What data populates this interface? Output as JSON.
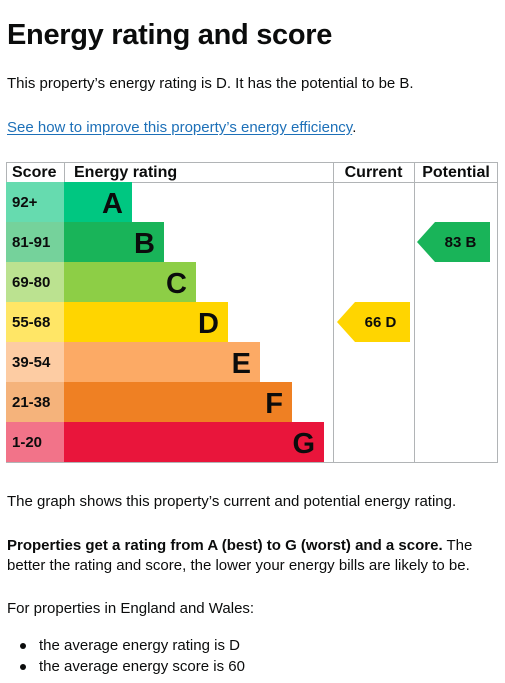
{
  "heading": "Energy rating and score",
  "intro": "This property’s energy rating is D. It has the potential to be B.",
  "improve_link": "See how to improve this property’s energy efficiency",
  "improve_link_suffix": ".",
  "chart": {
    "headers": {
      "score": "Score",
      "rating": "Energy rating",
      "current": "Current",
      "potential": "Potential"
    },
    "bands": [
      {
        "score": "92+",
        "letter": "A",
        "color": "#00c781",
        "score_bg": "#66dbaf"
      },
      {
        "score": "81-91",
        "letter": "B",
        "color": "#19b459",
        "score_bg": "#75d29b"
      },
      {
        "score": "69-80",
        "letter": "C",
        "color": "#8dce46",
        "score_bg": "#bbe290"
      },
      {
        "score": "55-68",
        "letter": "D",
        "color": "#ffd500",
        "score_bg": "#ffe666"
      },
      {
        "score": "39-54",
        "letter": "E",
        "color": "#fcaa65",
        "score_bg": "#fdcca3"
      },
      {
        "score": "21-38",
        "letter": "F",
        "color": "#ef8023",
        "score_bg": "#f5b37b"
      },
      {
        "score": "1-20",
        "letter": "G",
        "color": "#e9153b",
        "score_bg": "#f27389"
      }
    ],
    "current": {
      "label": "66  D",
      "band": 3,
      "color": "#ffd500"
    },
    "potential": {
      "label": "83  B",
      "band": 1,
      "color": "#19b459"
    }
  },
  "graph_caption": "The graph shows this property’s current and potential energy rating.",
  "explain_bold": "Properties get a rating from A (best) to G (worst) and a score.",
  "explain_rest": " The better the rating and score, the lower your energy bills are likely to be.",
  "regional_intro": "For properties in England and Wales:",
  "averages": [
    "the average energy rating is D",
    "the average energy score is 60"
  ]
}
